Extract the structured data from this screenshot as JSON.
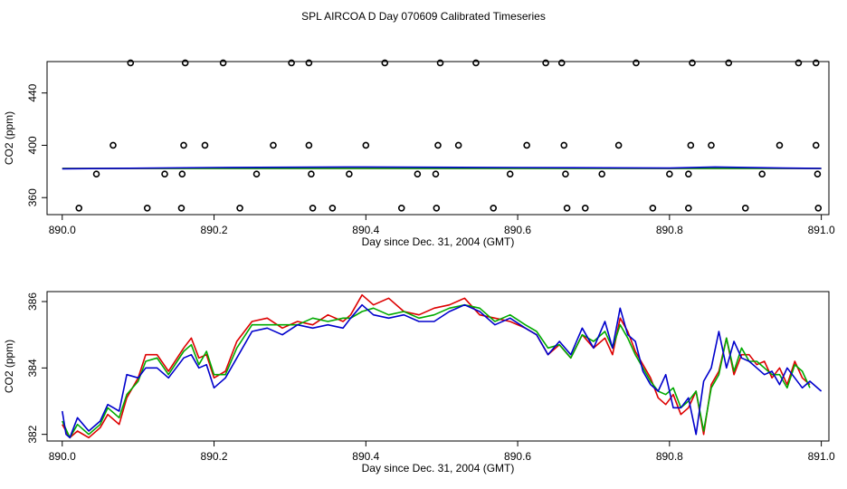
{
  "title": "SPL AIRCOA D  Day 070609  Calibrated Timeseries",
  "chart_data": [
    {
      "type": "scatter",
      "title": "",
      "xlabel": "Day since Dec. 31, 2004 (GMT)",
      "ylabel": "CO2 (ppm)",
      "xlim": [
        889.98,
        891.01
      ],
      "ylim": [
        347,
        464
      ],
      "xticks": [
        890.0,
        890.2,
        890.4,
        890.6,
        890.8,
        891.0
      ],
      "xtick_labels": [
        "890.0",
        "890.2",
        "890.4",
        "890.6",
        "890.8",
        "891.0"
      ],
      "yticks": [
        360,
        400,
        440
      ],
      "ytick_labels": [
        "360",
        "400",
        "440"
      ],
      "points": [
        {
          "x": 890.09,
          "y": 463
        },
        {
          "x": 890.162,
          "y": 463
        },
        {
          "x": 890.212,
          "y": 463
        },
        {
          "x": 890.302,
          "y": 463
        },
        {
          "x": 890.325,
          "y": 463
        },
        {
          "x": 890.425,
          "y": 463
        },
        {
          "x": 890.498,
          "y": 463
        },
        {
          "x": 890.545,
          "y": 463
        },
        {
          "x": 890.637,
          "y": 463
        },
        {
          "x": 890.658,
          "y": 463
        },
        {
          "x": 890.756,
          "y": 463
        },
        {
          "x": 890.83,
          "y": 463
        },
        {
          "x": 890.878,
          "y": 463
        },
        {
          "x": 890.97,
          "y": 463
        },
        {
          "x": 890.993,
          "y": 463
        },
        {
          "x": 890.067,
          "y": 400
        },
        {
          "x": 890.16,
          "y": 400
        },
        {
          "x": 890.188,
          "y": 400
        },
        {
          "x": 890.278,
          "y": 400
        },
        {
          "x": 890.325,
          "y": 400
        },
        {
          "x": 890.4,
          "y": 400
        },
        {
          "x": 890.495,
          "y": 400
        },
        {
          "x": 890.522,
          "y": 400
        },
        {
          "x": 890.612,
          "y": 400
        },
        {
          "x": 890.661,
          "y": 400
        },
        {
          "x": 890.733,
          "y": 400
        },
        {
          "x": 890.828,
          "y": 400
        },
        {
          "x": 890.855,
          "y": 400
        },
        {
          "x": 890.945,
          "y": 400
        },
        {
          "x": 890.993,
          "y": 400
        },
        {
          "x": 890.045,
          "y": 378
        },
        {
          "x": 890.135,
          "y": 378
        },
        {
          "x": 890.158,
          "y": 378
        },
        {
          "x": 890.256,
          "y": 378
        },
        {
          "x": 890.328,
          "y": 378
        },
        {
          "x": 890.378,
          "y": 378
        },
        {
          "x": 890.468,
          "y": 378
        },
        {
          "x": 890.492,
          "y": 378
        },
        {
          "x": 890.59,
          "y": 378
        },
        {
          "x": 890.663,
          "y": 378
        },
        {
          "x": 890.711,
          "y": 378
        },
        {
          "x": 890.8,
          "y": 378
        },
        {
          "x": 890.825,
          "y": 378
        },
        {
          "x": 890.922,
          "y": 378
        },
        {
          "x": 890.995,
          "y": 378
        },
        {
          "x": 890.022,
          "y": 352
        },
        {
          "x": 890.112,
          "y": 352
        },
        {
          "x": 890.157,
          "y": 352
        },
        {
          "x": 890.234,
          "y": 352
        },
        {
          "x": 890.33,
          "y": 352
        },
        {
          "x": 890.356,
          "y": 352
        },
        {
          "x": 890.447,
          "y": 352
        },
        {
          "x": 890.493,
          "y": 352
        },
        {
          "x": 890.568,
          "y": 352
        },
        {
          "x": 890.665,
          "y": 352
        },
        {
          "x": 890.689,
          "y": 352
        },
        {
          "x": 890.778,
          "y": 352
        },
        {
          "x": 890.825,
          "y": 352
        },
        {
          "x": 890.9,
          "y": 352
        },
        {
          "x": 890.996,
          "y": 352
        }
      ],
      "series": [
        {
          "name": "red",
          "color": "#dd0000",
          "x": [
            890.0,
            891.0
          ],
          "values": [
            382.3,
            382.3
          ]
        },
        {
          "name": "green",
          "color": "#00aa00",
          "x": [
            890.0,
            891.0
          ],
          "values": [
            382.3,
            382.3
          ]
        },
        {
          "name": "blue",
          "color": "#0000cc",
          "x": [
            890.0,
            890.2,
            890.4,
            890.6,
            890.8,
            890.86,
            890.95,
            891.0
          ],
          "values": [
            382.0,
            383.0,
            383.4,
            383.0,
            382.6,
            383.4,
            382.6,
            382.3
          ]
        }
      ]
    },
    {
      "type": "line",
      "title": "",
      "xlabel": "Day since Dec. 31, 2004 (GMT)",
      "ylabel": "CO2 (ppm)",
      "xlim": [
        889.98,
        891.01
      ],
      "ylim": [
        381.8,
        386.3
      ],
      "xticks": [
        890.0,
        890.2,
        890.4,
        890.6,
        890.8,
        891.0
      ],
      "xtick_labels": [
        "890.0",
        "890.2",
        "890.4",
        "890.6",
        "890.8",
        "891.0"
      ],
      "yticks": [
        382,
        384,
        386
      ],
      "ytick_labels": [
        "382",
        "384",
        "386"
      ],
      "series": [
        {
          "name": "red",
          "color": "#dd0000",
          "x": [
            890.0,
            890.01,
            890.02,
            890.035,
            890.05,
            890.06,
            890.075,
            890.085,
            890.1,
            890.11,
            890.125,
            890.14,
            890.16,
            890.17,
            890.18,
            890.19,
            890.2,
            890.215,
            890.23,
            890.25,
            890.27,
            890.29,
            890.31,
            890.33,
            890.35,
            890.37,
            890.38,
            890.395,
            890.41,
            890.43,
            890.45,
            890.47,
            890.49,
            890.51,
            890.53,
            890.55,
            890.57,
            890.59,
            890.61,
            890.625,
            890.64,
            890.655,
            890.67,
            890.685,
            890.7,
            890.715,
            890.725,
            890.735,
            890.745,
            890.755,
            890.765,
            890.775,
            890.785,
            890.795,
            890.805,
            890.815,
            890.825,
            890.835,
            890.845,
            890.855,
            890.865,
            890.875,
            890.885,
            890.895,
            890.905,
            890.915,
            890.925,
            890.935,
            890.945,
            890.955,
            890.965,
            890.975,
            890.985
          ],
          "values": [
            382.3,
            381.9,
            382.1,
            381.9,
            382.2,
            382.6,
            382.3,
            383.1,
            383.7,
            384.4,
            384.4,
            383.9,
            384.6,
            384.9,
            384.3,
            384.4,
            383.7,
            383.9,
            384.8,
            385.4,
            385.5,
            385.2,
            385.4,
            385.3,
            385.6,
            385.4,
            385.6,
            386.2,
            385.9,
            386.1,
            385.7,
            385.6,
            385.8,
            385.9,
            386.1,
            385.6,
            385.5,
            385.4,
            385.2,
            385.0,
            384.4,
            384.7,
            384.3,
            385.0,
            384.6,
            384.9,
            384.4,
            385.5,
            385.1,
            384.5,
            384.1,
            383.7,
            383.1,
            382.9,
            383.2,
            382.6,
            382.8,
            383.3,
            382.0,
            383.5,
            383.9,
            384.9,
            383.8,
            384.4,
            384.4,
            384.1,
            384.2,
            383.7,
            384.0,
            383.5,
            384.2,
            383.7,
            383.5
          ]
        },
        {
          "name": "green",
          "color": "#00aa00",
          "x": [
            890.0,
            890.01,
            890.02,
            890.035,
            890.05,
            890.06,
            890.075,
            890.085,
            890.1,
            890.11,
            890.125,
            890.14,
            890.16,
            890.17,
            890.18,
            890.19,
            890.2,
            890.215,
            890.23,
            890.25,
            890.27,
            890.29,
            890.31,
            890.33,
            890.35,
            890.37,
            890.38,
            890.395,
            890.41,
            890.43,
            890.45,
            890.47,
            890.49,
            890.51,
            890.53,
            890.55,
            890.57,
            890.59,
            890.61,
            890.625,
            890.64,
            890.655,
            890.67,
            890.685,
            890.7,
            890.715,
            890.725,
            890.735,
            890.745,
            890.755,
            890.765,
            890.775,
            890.785,
            890.795,
            890.805,
            890.815,
            890.825,
            890.835,
            890.845,
            890.855,
            890.865,
            890.875,
            890.885,
            890.895,
            890.905,
            890.915,
            890.925,
            890.935,
            890.945,
            890.955,
            890.965,
            890.975,
            890.985
          ],
          "values": [
            382.4,
            381.9,
            382.3,
            382.0,
            382.3,
            382.8,
            382.5,
            383.2,
            383.6,
            384.2,
            384.3,
            383.8,
            384.5,
            384.7,
            384.1,
            384.5,
            383.8,
            383.8,
            384.6,
            385.3,
            385.3,
            385.3,
            385.3,
            385.5,
            385.4,
            385.5,
            385.5,
            385.7,
            385.8,
            385.6,
            385.7,
            385.5,
            385.6,
            385.8,
            385.9,
            385.8,
            385.4,
            385.6,
            385.3,
            385.1,
            384.6,
            384.7,
            384.3,
            385.0,
            384.8,
            385.1,
            384.6,
            385.3,
            384.9,
            384.4,
            384.0,
            383.6,
            383.3,
            383.2,
            383.4,
            382.8,
            383.0,
            383.3,
            382.1,
            383.4,
            383.8,
            384.9,
            383.9,
            384.6,
            384.2,
            384.2,
            384.0,
            383.8,
            383.8,
            383.4,
            384.1,
            383.9,
            383.4
          ]
        },
        {
          "name": "blue",
          "color": "#0000cc",
          "x": [
            890.0,
            890.005,
            890.01,
            890.02,
            890.035,
            890.05,
            890.06,
            890.075,
            890.085,
            890.1,
            890.11,
            890.125,
            890.14,
            890.16,
            890.17,
            890.18,
            890.19,
            890.2,
            890.215,
            890.23,
            890.25,
            890.27,
            890.29,
            890.31,
            890.33,
            890.35,
            890.37,
            890.38,
            890.395,
            890.41,
            890.43,
            890.45,
            890.47,
            890.49,
            890.51,
            890.53,
            890.55,
            890.57,
            890.59,
            890.61,
            890.625,
            890.64,
            890.655,
            890.67,
            890.685,
            890.7,
            890.715,
            890.725,
            890.735,
            890.745,
            890.755,
            890.765,
            890.775,
            890.785,
            890.795,
            890.805,
            890.815,
            890.825,
            890.835,
            890.845,
            890.855,
            890.865,
            890.875,
            890.885,
            890.895,
            890.905,
            890.915,
            890.925,
            890.935,
            890.945,
            890.955,
            890.965,
            890.975,
            890.985,
            891.0
          ],
          "values": [
            382.7,
            382.0,
            381.9,
            382.5,
            382.1,
            382.4,
            382.9,
            382.7,
            383.8,
            383.7,
            384.0,
            384.0,
            383.7,
            384.3,
            384.4,
            384.0,
            384.1,
            383.4,
            383.7,
            384.3,
            385.1,
            385.2,
            385.0,
            385.3,
            385.2,
            385.3,
            385.2,
            385.5,
            385.9,
            385.6,
            385.5,
            385.6,
            385.4,
            385.4,
            385.7,
            385.9,
            385.7,
            385.3,
            385.5,
            385.2,
            385.0,
            384.4,
            384.8,
            384.4,
            385.2,
            384.6,
            385.4,
            384.6,
            385.8,
            385.0,
            384.8,
            383.9,
            383.5,
            383.3,
            383.8,
            382.8,
            382.8,
            383.1,
            382.0,
            383.6,
            384.0,
            385.1,
            384.0,
            384.8,
            384.3,
            384.2,
            384.0,
            383.8,
            383.9,
            383.5,
            384.0,
            383.7,
            383.4,
            383.6,
            383.3
          ]
        }
      ]
    }
  ]
}
